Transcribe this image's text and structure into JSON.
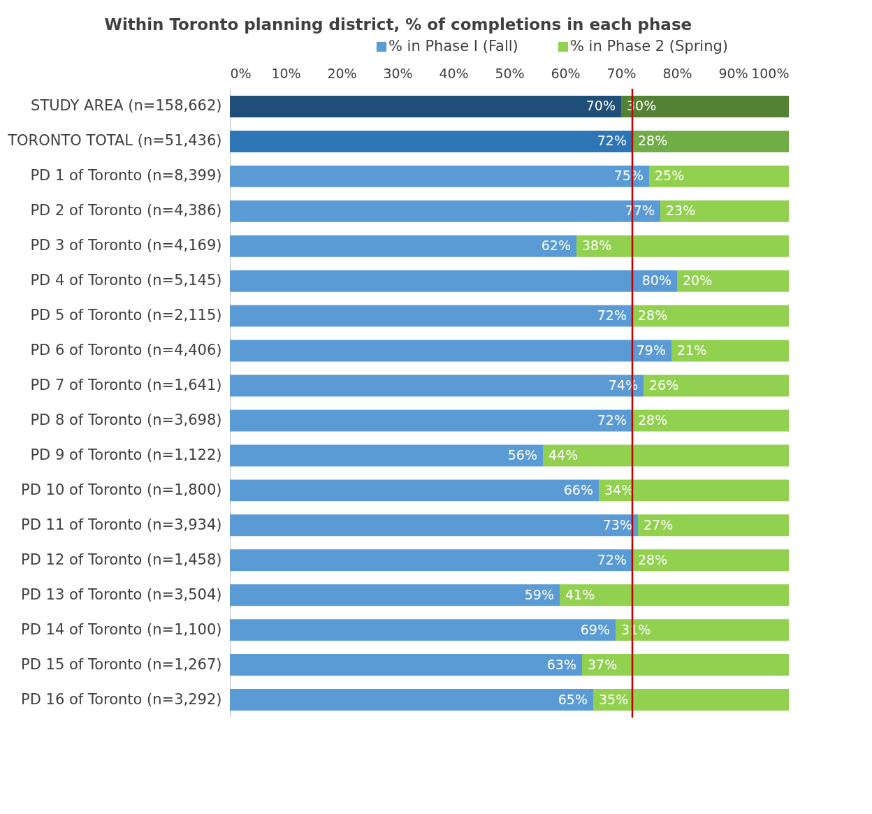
{
  "chart_data": {
    "type": "bar",
    "orientation": "horizontal",
    "stacked": true,
    "title": "Within Toronto planning district, % of completions in each phase",
    "categories": [
      "STUDY AREA (n=158,662)",
      "TORONTO TOTAL (n=51,436)",
      "PD 1 of Toronto (n=8,399)",
      "PD 2 of Toronto (n=4,386)",
      "PD 3 of Toronto (n=4,169)",
      "PD 4 of Toronto (n=5,145)",
      "PD 5 of Toronto (n=2,115)",
      "PD 6 of Toronto (n=4,406)",
      "PD 7 of Toronto (n=1,641)",
      "PD 8 of Toronto (n=3,698)",
      "PD 9 of Toronto (n=1,122)",
      "PD 10 of Toronto (n=1,800)",
      "PD 11 of Toronto (n=3,934)",
      "PD 12 of Toronto (n=1,458)",
      "PD 13 of Toronto (n=3,504)",
      "PD 14 of Toronto (n=1,100)",
      "PD 15 of Toronto (n=1,267)",
      "PD 16 of Toronto (n=3,292)"
    ],
    "series": [
      {
        "name": "% in Phase I (Fall)",
        "color": "#5b9bd5",
        "colors": [
          "#1f4e79",
          "#2e75b6",
          "#5b9bd5",
          "#5b9bd5",
          "#5b9bd5",
          "#5b9bd5",
          "#5b9bd5",
          "#5b9bd5",
          "#5b9bd5",
          "#5b9bd5",
          "#5b9bd5",
          "#5b9bd5",
          "#5b9bd5",
          "#5b9bd5",
          "#5b9bd5",
          "#5b9bd5",
          "#5b9bd5",
          "#5b9bd5"
        ],
        "values": [
          70,
          72,
          75,
          77,
          62,
          80,
          72,
          79,
          74,
          72,
          56,
          66,
          73,
          72,
          59,
          69,
          63,
          65
        ],
        "value_labels": [
          "70%",
          "72%",
          "75%",
          "77%",
          "62%",
          "80%",
          "72%",
          "79%",
          "74%",
          "72%",
          "56%",
          "66%",
          "73%",
          "72%",
          "59%",
          "69%",
          "63%",
          "65%"
        ]
      },
      {
        "name": "% in Phase 2 (Spring)",
        "color": "#92d050",
        "colors": [
          "#548235",
          "#70ad47",
          "#92d050",
          "#92d050",
          "#92d050",
          "#92d050",
          "#92d050",
          "#92d050",
          "#92d050",
          "#92d050",
          "#92d050",
          "#92d050",
          "#92d050",
          "#92d050",
          "#92d050",
          "#92d050",
          "#92d050",
          "#92d050"
        ],
        "values": [
          30,
          28,
          25,
          23,
          38,
          20,
          28,
          21,
          26,
          28,
          44,
          34,
          27,
          28,
          41,
          31,
          37,
          35
        ],
        "value_labels": [
          "30%",
          "28%",
          "25%",
          "23%",
          "38%",
          "20%",
          "28%",
          "21%",
          "26%",
          "28%",
          "44%",
          "34%",
          "27%",
          "28%",
          "41%",
          "31%",
          "37%",
          "35%"
        ]
      }
    ],
    "xlim": [
      0,
      100
    ],
    "xticks": [
      {
        "value": 0,
        "label": "0%"
      },
      {
        "value": 10,
        "label": "10%"
      },
      {
        "value": 20,
        "label": "20%"
      },
      {
        "value": 30,
        "label": "30%"
      },
      {
        "value": 40,
        "label": "40%"
      },
      {
        "value": 50,
        "label": "50%"
      },
      {
        "value": 60,
        "label": "60%"
      },
      {
        "value": 70,
        "label": "70%"
      },
      {
        "value": 80,
        "label": "80%"
      },
      {
        "value": 90,
        "label": "90%"
      },
      {
        "value": 100,
        "label": "100%"
      }
    ],
    "ref_lines": [
      {
        "axis": "x",
        "value": 72,
        "color": "#c00000",
        "line_style": "solid"
      }
    ],
    "legend": "top",
    "grid": false
  }
}
